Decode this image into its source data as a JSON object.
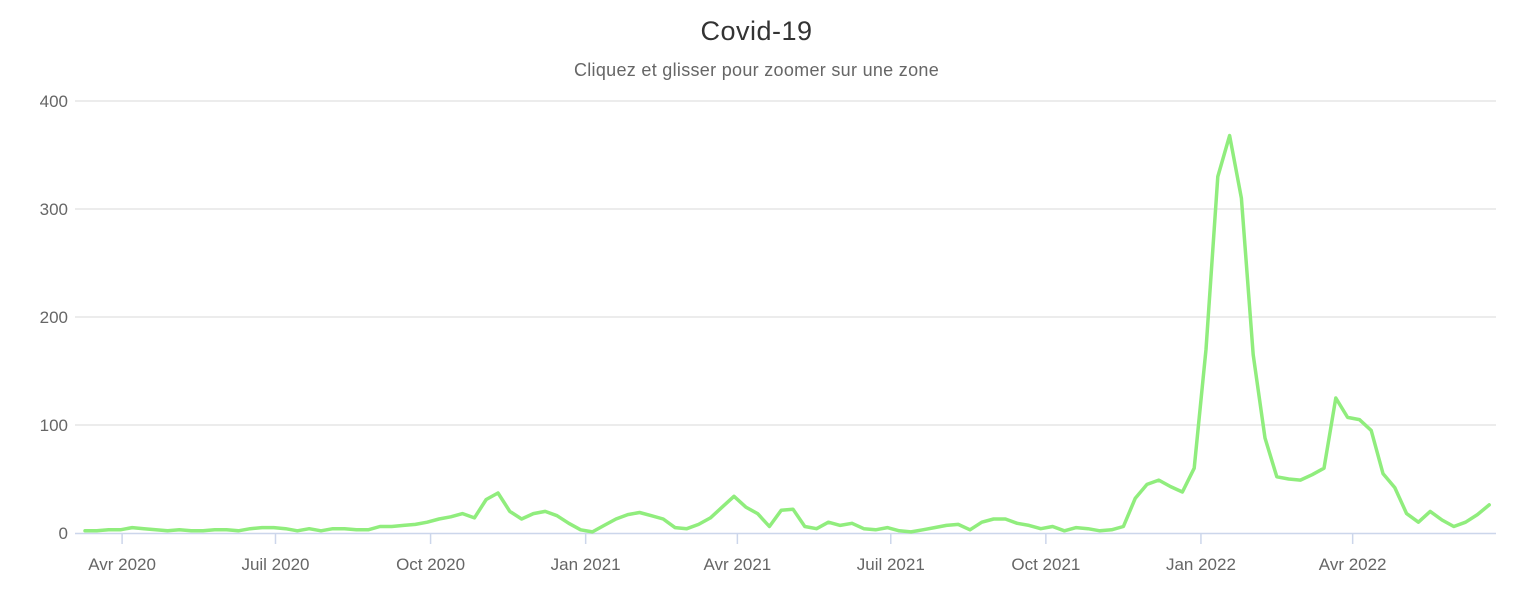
{
  "chart_data": {
    "type": "line",
    "title": "Covid-19",
    "subtitle": "Cliquez et glisser pour zoomer sur une zone",
    "x_start_date": "2020-03-10",
    "x_interval": "weekly",
    "xlabel": "",
    "ylabel": "",
    "ylim": [
      0,
      400
    ],
    "grid": true,
    "legend": "none",
    "y_ticks": [
      0,
      100,
      200,
      300,
      400
    ],
    "x_ticks": [
      {
        "label": "Avr 2020",
        "week": 3.143
      },
      {
        "label": "Juil 2020",
        "week": 16.143
      },
      {
        "label": "Oct 2020",
        "week": 29.286
      },
      {
        "label": "Jan 2021",
        "week": 42.429
      },
      {
        "label": "Avr 2021",
        "week": 55.286
      },
      {
        "label": "Juil 2021",
        "week": 68.286
      },
      {
        "label": "Oct 2021",
        "week": 81.429
      },
      {
        "label": "Jan 2022",
        "week": 94.571
      },
      {
        "label": "Avr 2022",
        "week": 107.429
      }
    ],
    "series": [
      {
        "color": "#90ed7d",
        "values": [
          2,
          2,
          3,
          3,
          5,
          4,
          3,
          2,
          3,
          2,
          2,
          3,
          3,
          2,
          4,
          5,
          5,
          4,
          2,
          4,
          2,
          4,
          4,
          3,
          3,
          6,
          6,
          7,
          8,
          10,
          13,
          15,
          18,
          14,
          31,
          37,
          20,
          13,
          18,
          20,
          16,
          9,
          3,
          1,
          7,
          13,
          17,
          19,
          16,
          13,
          5,
          4,
          8,
          14,
          24,
          34,
          24,
          18,
          6,
          21,
          22,
          6,
          4,
          10,
          7,
          9,
          4,
          3,
          5,
          2,
          1,
          3,
          5,
          7,
          8,
          3,
          10,
          13,
          13,
          9,
          7,
          4,
          6,
          2,
          5,
          4,
          2,
          3,
          6,
          32,
          45,
          49,
          43,
          38,
          60,
          170,
          330,
          368,
          310,
          165,
          88,
          52,
          50,
          49,
          54,
          60,
          125,
          107,
          105,
          95,
          55,
          42,
          18,
          10,
          20,
          12,
          6,
          10,
          17,
          26
        ]
      }
    ],
    "colors": {
      "background": "#ffffff",
      "grid": "#e6e6e6",
      "axis": "#ccd6eb",
      "tick_label": "#666666",
      "title": "#333333",
      "subtitle": "#666666"
    }
  }
}
